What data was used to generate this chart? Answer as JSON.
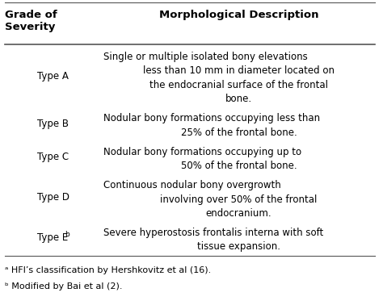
{
  "header_col1": "Grade of\nSeverity",
  "header_col2": "Morphological Description",
  "rows": [
    {
      "col1": "Type A",
      "col2": "Single or multiple isolated bony elevations\nless than 10 mm in diameter located on\nthe endocranial surface of the frontal\nbone."
    },
    {
      "col1": "Type B",
      "col2": "Nodular bony formations occupying less than\n25% of the frontal bone."
    },
    {
      "col1": "Type C",
      "col2": "Nodular bony formations occupying up to\n50% of the frontal bone."
    },
    {
      "col1": "Type D",
      "col2": "Continuous nodular bony overgrowth\ninvolving over 50% of the frontal\nendocranium."
    },
    {
      "col1": "Type Eb",
      "col2": "Severe hyperostosis frontalis interna with soft\ntissue expansion."
    }
  ],
  "footnote_a": "ᵃ HFI’s classification by Hershkovitz et al (16).",
  "footnote_b": "ᵇ Modified by Bai et al (2).",
  "bg_color": "#ffffff",
  "text_color": "#000000",
  "header_color": "#000000",
  "line_color": "#555555",
  "font_size": 8.5,
  "header_font_size": 9.5
}
